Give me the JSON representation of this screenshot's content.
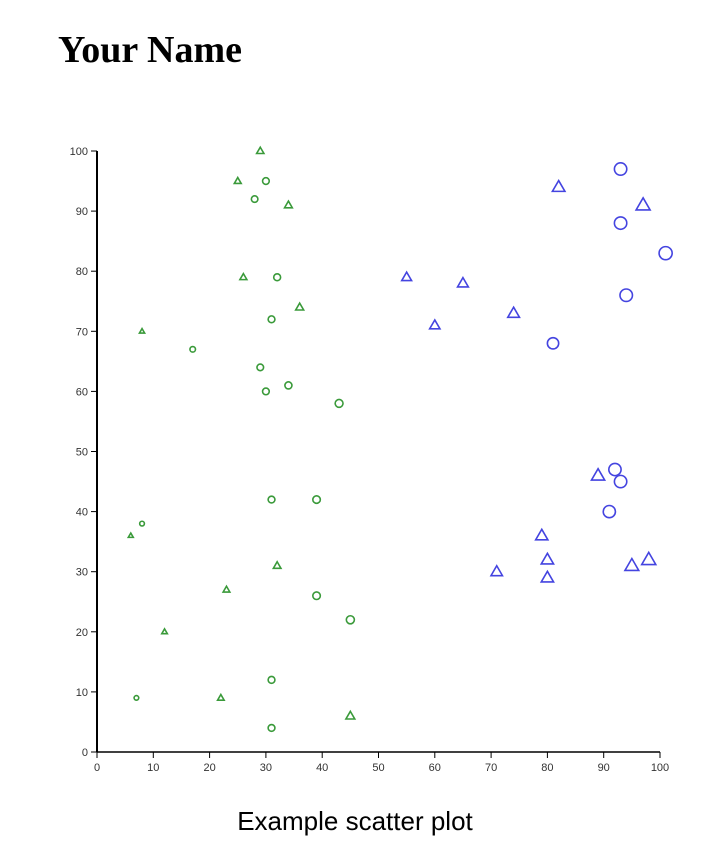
{
  "header": {
    "title": "Your Name"
  },
  "caption": "Example scatter plot",
  "colors": {
    "group_a": "#3a9a3a",
    "group_b": "#4444e0",
    "axis": "#000000"
  },
  "chart_data": {
    "type": "scatter",
    "title": "Example scatter plot",
    "xlabel": "",
    "ylabel": "",
    "xlim": [
      0,
      100
    ],
    "ylim": [
      0,
      100
    ],
    "grid": false,
    "legend": null,
    "x_ticks": [
      0,
      10,
      20,
      30,
      40,
      50,
      60,
      70,
      80,
      90,
      100
    ],
    "y_ticks": [
      0,
      10,
      20,
      30,
      40,
      50,
      60,
      70,
      80,
      90,
      100
    ],
    "marker_size_encodes": "x value",
    "series": [
      {
        "name": "green-circles",
        "color": "#3a9a3a",
        "marker": "circle",
        "points": [
          [
            30,
            95
          ],
          [
            28,
            92
          ],
          [
            32,
            79
          ],
          [
            31,
            72
          ],
          [
            17,
            67
          ],
          [
            29,
            64
          ],
          [
            34,
            61
          ],
          [
            30,
            60
          ],
          [
            43,
            58
          ],
          [
            31,
            42
          ],
          [
            39,
            42
          ],
          [
            8,
            38
          ],
          [
            39,
            26
          ],
          [
            45,
            22
          ],
          [
            31,
            12
          ],
          [
            7,
            9
          ],
          [
            31,
            4
          ]
        ]
      },
      {
        "name": "green-triangles",
        "color": "#3a9a3a",
        "marker": "triangle",
        "points": [
          [
            29,
            100
          ],
          [
            25,
            95
          ],
          [
            34,
            91
          ],
          [
            26,
            79
          ],
          [
            36,
            74
          ],
          [
            8,
            70
          ],
          [
            6,
            36
          ],
          [
            32,
            31
          ],
          [
            23,
            27
          ],
          [
            12,
            20
          ],
          [
            22,
            9
          ],
          [
            45,
            6
          ]
        ]
      },
      {
        "name": "blue-circles",
        "color": "#4444e0",
        "marker": "circle",
        "points": [
          [
            93,
            97
          ],
          [
            93,
            88
          ],
          [
            101,
            83
          ],
          [
            94,
            76
          ],
          [
            81,
            68
          ],
          [
            92,
            47
          ],
          [
            93,
            45
          ],
          [
            91,
            40
          ]
        ]
      },
      {
        "name": "blue-triangles",
        "color": "#4444e0",
        "marker": "triangle",
        "points": [
          [
            82,
            94
          ],
          [
            97,
            91
          ],
          [
            55,
            79
          ],
          [
            65,
            78
          ],
          [
            74,
            73
          ],
          [
            60,
            71
          ],
          [
            89,
            46
          ],
          [
            79,
            36
          ],
          [
            80,
            32
          ],
          [
            98,
            32
          ],
          [
            95,
            31
          ],
          [
            71,
            30
          ],
          [
            80,
            29
          ]
        ]
      }
    ]
  }
}
